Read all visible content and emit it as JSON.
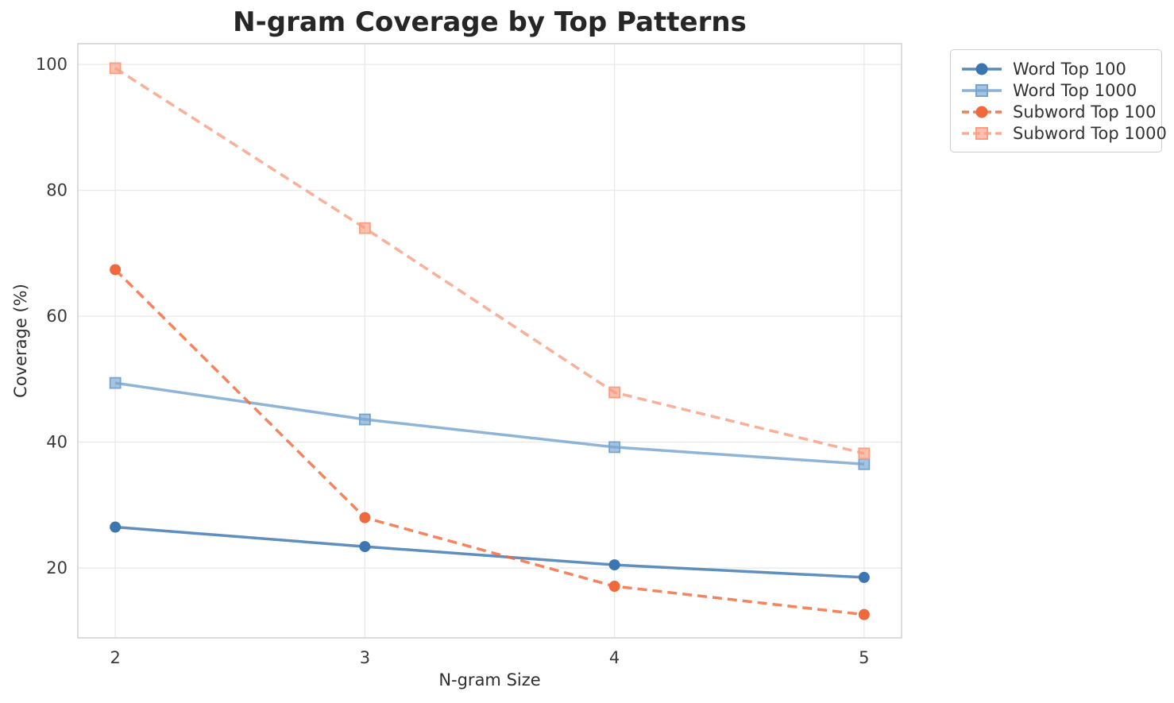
{
  "chart_data": {
    "type": "line",
    "title": "N-gram Coverage by Top Patterns",
    "xlabel": "N-gram Size",
    "ylabel": "Coverage (%)",
    "x": [
      2,
      3,
      4,
      5
    ],
    "x_ticks": [
      2,
      3,
      4,
      5
    ],
    "y_ticks": [
      20,
      40,
      60,
      80,
      100
    ],
    "xlim": [
      1.85,
      5.15
    ],
    "ylim": [
      8.9,
      103.3
    ],
    "grid": true,
    "legend_position": "outside-upper-right",
    "series": [
      {
        "name": "Word Top 100",
        "values": [
          26.5,
          23.4,
          20.5,
          18.5
        ],
        "color": "#3c76b0",
        "style": "solid",
        "marker": "circle"
      },
      {
        "name": "Word Top 1000",
        "values": [
          49.4,
          43.6,
          39.2,
          36.5
        ],
        "color": "#76a4cf",
        "style": "solid",
        "marker": "square"
      },
      {
        "name": "Subword Top 100",
        "values": [
          67.4,
          28.0,
          17.1,
          12.6
        ],
        "color": "#f1693b",
        "style": "dashed",
        "marker": "circle"
      },
      {
        "name": "Subword Top 1000",
        "values": [
          99.4,
          74.0,
          47.9,
          38.2
        ],
        "color": "#f99e82",
        "style": "dashed",
        "marker": "square"
      }
    ],
    "colors": {
      "grid": "#e9e9e9",
      "spine": "#cccccc",
      "tick_text": "#3a3a3a",
      "title_text": "#262626"
    }
  }
}
